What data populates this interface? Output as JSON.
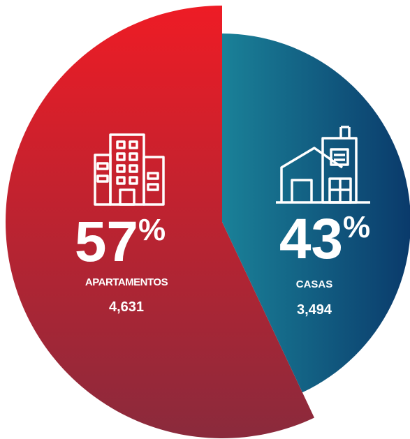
{
  "chart_data": {
    "type": "pie",
    "categories": [
      "APARTAMENTOS",
      "CASAS"
    ],
    "values": [
      57,
      43
    ],
    "unit": "%",
    "counts": [
      4631,
      3494
    ],
    "count_labels": [
      "4,631",
      "3,494"
    ],
    "colors": [
      [
        "#ee1c25",
        "#8a2a3c"
      ],
      [
        "#1a8198",
        "#0a3a6b"
      ]
    ]
  }
}
